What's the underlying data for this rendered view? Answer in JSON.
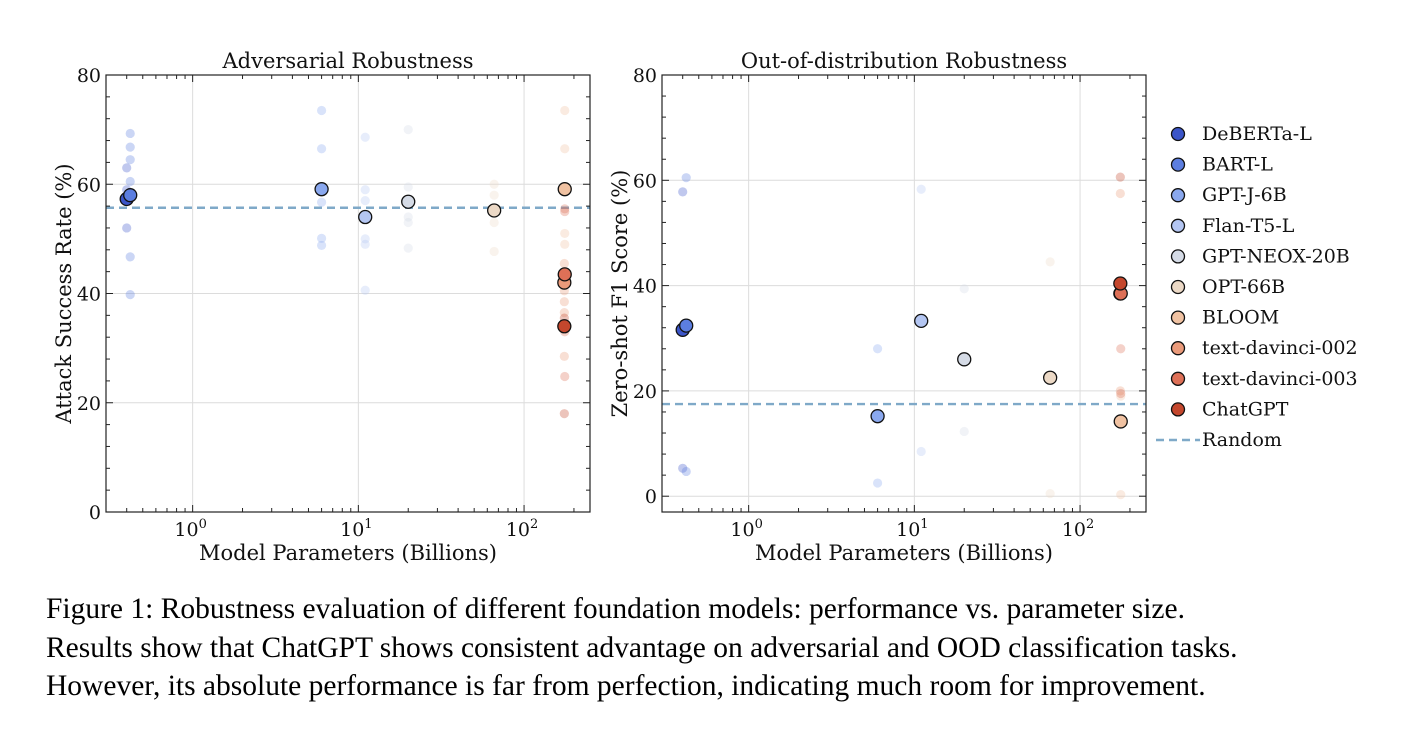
{
  "chart_data": [
    {
      "type": "scatter",
      "title": "Adversarial Robustness",
      "xlabel": "Model Parameters (Billions)",
      "ylabel": "Attack Success Rate (%)",
      "xscale": "log",
      "xlim": [
        0.3,
        250
      ],
      "ylim": [
        0,
        80
      ],
      "yticks": [
        "0",
        "20",
        "40",
        "60",
        "80"
      ],
      "xticks": [
        {
          "value": 1,
          "base": "10",
          "exp": "0"
        },
        {
          "value": 10,
          "base": "10",
          "exp": "1"
        },
        {
          "value": 100,
          "base": "10",
          "exp": "2"
        }
      ],
      "grid": true,
      "random_baseline": 55.7,
      "series": [
        {
          "name": "DeBERTa-L",
          "color": "#3b55c9",
          "x": 0.4,
          "y": 57.3,
          "faded": [
            52,
            57,
            59,
            63
          ]
        },
        {
          "name": "BART-L",
          "color": "#5c7ee0",
          "x": 0.42,
          "y": 58.0,
          "faded": [
            39.8,
            46.7,
            60.5,
            64.5,
            66.8,
            69.3
          ]
        },
        {
          "name": "GPT-J-6B",
          "color": "#8aa8ee",
          "x": 6,
          "y": 59.1,
          "faded": [
            48.8,
            50.1,
            56.7,
            66.5,
            73.5
          ]
        },
        {
          "name": "Flan-T5-L",
          "color": "#b4c6f2",
          "x": 11,
          "y": 54.0,
          "faded": [
            40.6,
            49.0,
            50.0,
            57.0,
            59.0,
            68.6
          ]
        },
        {
          "name": "GPT-NEOX-20B",
          "color": "#d5dbe6",
          "x": 20,
          "y": 56.8,
          "faded": [
            48.3,
            53.0,
            54.0,
            59.5,
            70.0
          ]
        },
        {
          "name": "OPT-66B",
          "color": "#ecd9c6",
          "x": 66,
          "y": 55.2,
          "faded": [
            47.7,
            53.0,
            58.0,
            60.0
          ]
        },
        {
          "name": "BLOOM",
          "color": "#f0c2a2",
          "x": 176,
          "y": 59.1,
          "faded": [
            44.0,
            49.0,
            51.0,
            66.5,
            73.5
          ]
        },
        {
          "name": "text-davinci-002",
          "color": "#ea9a7a",
          "x": 175,
          "y": 42.0,
          "faded": [
            28.5,
            36.5,
            38.5,
            40.5,
            45.5
          ]
        },
        {
          "name": "text-davinci-003",
          "color": "#de7057",
          "x": 176,
          "y": 43.5,
          "faded": [
            24.8,
            33.0,
            55.5,
            55.0
          ]
        },
        {
          "name": "ChatGPT",
          "color": "#c4472d",
          "x": 175,
          "y": 34.0,
          "faded": [
            18.0,
            35.5
          ]
        }
      ]
    },
    {
      "type": "scatter",
      "title": "Out-of-distribution Robustness",
      "xlabel": "Model Parameters (Billions)",
      "ylabel": "Zero-shot F1 Score (%)",
      "xscale": "log",
      "xlim": [
        0.3,
        250
      ],
      "ylim": [
        -3,
        80
      ],
      "yticks": [
        "0",
        "20",
        "40",
        "60",
        "80"
      ],
      "xticks": [
        {
          "value": 1,
          "base": "10",
          "exp": "0"
        },
        {
          "value": 10,
          "base": "10",
          "exp": "1"
        },
        {
          "value": 100,
          "base": "10",
          "exp": "2"
        }
      ],
      "grid": true,
      "random_baseline": 17.5,
      "series": [
        {
          "name": "DeBERTa-L",
          "color": "#3b55c9",
          "x": 0.4,
          "y": 31.6,
          "faded": [
            5.3,
            57.8
          ]
        },
        {
          "name": "BART-L",
          "color": "#5c7ee0",
          "x": 0.42,
          "y": 32.4,
          "faded": [
            4.7,
            60.5
          ]
        },
        {
          "name": "GPT-J-6B",
          "color": "#8aa8ee",
          "x": 6,
          "y": 15.2,
          "faded": [
            2.5,
            28.0
          ]
        },
        {
          "name": "Flan-T5-L",
          "color": "#b4c6f2",
          "x": 11,
          "y": 33.3,
          "faded": [
            8.5,
            58.3
          ]
        },
        {
          "name": "GPT-NEOX-20B",
          "color": "#d5dbe6",
          "x": 20,
          "y": 26.0,
          "faded": [
            12.3,
            39.4
          ]
        },
        {
          "name": "OPT-66B",
          "color": "#ecd9c6",
          "x": 66,
          "y": 22.5,
          "faded": [
            0.5,
            44.5
          ]
        },
        {
          "name": "BLOOM",
          "color": "#f0c2a2",
          "x": 176,
          "y": 14.2,
          "faded": [
            0.3,
            19.0
          ]
        },
        {
          "name": "text-davinci-002",
          "color": "#ea9a7a",
          "x": 175,
          "y": 38.5,
          "faded": [
            20.0,
            57.5
          ]
        },
        {
          "name": "text-davinci-003",
          "color": "#de7057",
          "x": 176,
          "y": 38.5,
          "faded": [
            19.5,
            28.0
          ]
        },
        {
          "name": "ChatGPT",
          "color": "#c4472d",
          "x": 175,
          "y": 40.4,
          "faded": [
            60.6
          ]
        }
      ]
    }
  ],
  "legend": {
    "items": [
      {
        "label": "DeBERTa-L",
        "color": "#3b55c9"
      },
      {
        "label": "BART-L",
        "color": "#5c7ee0"
      },
      {
        "label": "GPT-J-6B",
        "color": "#8aa8ee"
      },
      {
        "label": "Flan-T5-L",
        "color": "#b4c6f2"
      },
      {
        "label": "GPT-NEOX-20B",
        "color": "#d5dbe6"
      },
      {
        "label": "OPT-66B",
        "color": "#ecd9c6"
      },
      {
        "label": "BLOOM",
        "color": "#f0c2a2"
      },
      {
        "label": "text-davinci-002",
        "color": "#ea9a7a"
      },
      {
        "label": "text-davinci-003",
        "color": "#de7057"
      },
      {
        "label": "ChatGPT",
        "color": "#c4472d"
      }
    ],
    "random_label": "Random",
    "random_color": "#7fa9c8"
  },
  "caption": {
    "line1": "Figure 1: Robustness evaluation of different foundation models: performance vs. parameter size.",
    "line2": "Results show that ChatGPT shows consistent advantage on adversarial and OOD classification tasks.",
    "line3": "However, its absolute performance is far from perfection, indicating much room for improvement."
  }
}
